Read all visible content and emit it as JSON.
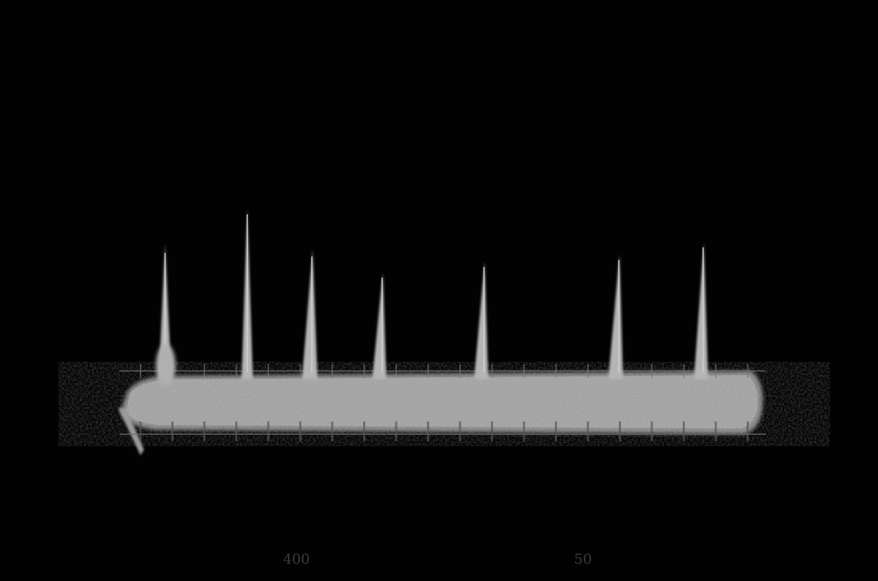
{
  "scale_labels": [
    "400",
    "50"
  ]
}
